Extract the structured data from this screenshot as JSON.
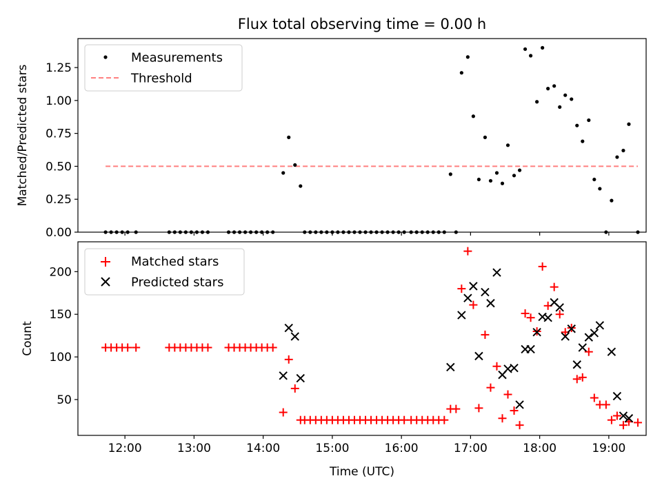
{
  "chart_data": {
    "title": "Flux total observing time = 0.00 h",
    "xlabel": "Time (UTC)",
    "x_ticks": [
      {
        "value": 12,
        "label": "12:00"
      },
      {
        "value": 13,
        "label": "13:00"
      },
      {
        "value": 14,
        "label": "14:00"
      },
      {
        "value": 15,
        "label": "15:00"
      },
      {
        "value": 16,
        "label": "16:00"
      },
      {
        "value": 17,
        "label": "17:00"
      },
      {
        "value": 18,
        "label": "18:00"
      },
      {
        "value": 19,
        "label": "19:00"
      }
    ],
    "xlim": [
      11.32,
      19.54
    ],
    "colors": {
      "measurements": "#000000",
      "threshold": "#ff7f7f",
      "matched": "#ff0000",
      "predicted": "#000000"
    },
    "panels": [
      {
        "type": "scatter",
        "ylabel": "Matched/Predicted stars",
        "ylim": [
          0,
          1.47
        ],
        "y_ticks": [
          "0.00",
          "0.25",
          "0.50",
          "0.75",
          "1.00",
          "1.25"
        ],
        "legend": {
          "position": "upper-left",
          "entries": [
            {
              "label": "Measurements",
              "marker": "dot"
            },
            {
              "label": "Threshold",
              "marker": "dashed-line"
            }
          ]
        },
        "threshold": {
          "x": [
            11.72,
            19.42
          ],
          "y": 0.5
        },
        "series": [
          {
            "name": "Measurements",
            "marker": "dot",
            "points": [
              [
                11.72,
                0
              ],
              [
                11.8,
                0
              ],
              [
                11.88,
                0
              ],
              [
                11.96,
                0
              ],
              [
                12.04,
                0
              ],
              [
                12.16,
                0
              ],
              [
                12.64,
                0
              ],
              [
                12.72,
                0
              ],
              [
                12.8,
                0
              ],
              [
                12.88,
                0
              ],
              [
                12.96,
                0
              ],
              [
                13.04,
                0
              ],
              [
                13.12,
                0
              ],
              [
                13.2,
                0
              ],
              [
                13.5,
                0
              ],
              [
                13.58,
                0
              ],
              [
                13.66,
                0
              ],
              [
                13.74,
                0
              ],
              [
                13.82,
                0
              ],
              [
                13.9,
                0
              ],
              [
                13.98,
                0
              ],
              [
                14.06,
                0
              ],
              [
                14.14,
                0
              ],
              [
                14.29,
                0.45
              ],
              [
                14.37,
                0.72
              ],
              [
                14.46,
                0.51
              ],
              [
                14.54,
                0.35
              ],
              [
                14.6,
                0
              ],
              [
                14.68,
                0
              ],
              [
                14.76,
                0
              ],
              [
                14.84,
                0
              ],
              [
                14.92,
                0
              ],
              [
                15.0,
                0
              ],
              [
                15.08,
                0
              ],
              [
                15.16,
                0
              ],
              [
                15.24,
                0
              ],
              [
                15.32,
                0
              ],
              [
                15.4,
                0
              ],
              [
                15.48,
                0
              ],
              [
                15.56,
                0
              ],
              [
                15.64,
                0
              ],
              [
                15.72,
                0
              ],
              [
                15.8,
                0
              ],
              [
                15.88,
                0
              ],
              [
                15.96,
                0
              ],
              [
                16.04,
                0
              ],
              [
                16.14,
                0
              ],
              [
                16.22,
                0
              ],
              [
                16.3,
                0
              ],
              [
                16.38,
                0
              ],
              [
                16.46,
                0
              ],
              [
                16.54,
                0
              ],
              [
                16.62,
                0
              ],
              [
                16.71,
                0.44
              ],
              [
                16.79,
                0
              ],
              [
                16.87,
                1.21
              ],
              [
                16.96,
                1.33
              ],
              [
                17.04,
                0.88
              ],
              [
                17.12,
                0.4
              ],
              [
                17.21,
                0.72
              ],
              [
                17.29,
                0.39
              ],
              [
                17.38,
                0.45
              ],
              [
                17.46,
                0.37
              ],
              [
                17.54,
                0.66
              ],
              [
                17.63,
                0.43
              ],
              [
                17.71,
                0.47
              ],
              [
                17.79,
                1.39
              ],
              [
                17.87,
                1.34
              ],
              [
                17.96,
                0.99
              ],
              [
                18.04,
                1.4
              ],
              [
                18.12,
                1.09
              ],
              [
                18.21,
                1.11
              ],
              [
                18.29,
                0.95
              ],
              [
                18.37,
                1.04
              ],
              [
                18.46,
                1.01
              ],
              [
                18.54,
                0.81
              ],
              [
                18.62,
                0.69
              ],
              [
                18.71,
                0.85
              ],
              [
                18.79,
                0.4
              ],
              [
                18.87,
                0.33
              ],
              [
                18.96,
                0
              ],
              [
                19.04,
                0.24
              ],
              [
                19.12,
                0.57
              ],
              [
                19.21,
                0.62
              ],
              [
                19.29,
                0.82
              ],
              [
                19.42,
                0
              ]
            ]
          }
        ]
      },
      {
        "type": "scatter",
        "ylabel": "Count",
        "ylim": [
          8,
          235
        ],
        "y_ticks": [
          "50",
          "100",
          "150",
          "200"
        ],
        "legend": {
          "position": "upper-left",
          "entries": [
            {
              "label": "Matched stars",
              "marker": "plus"
            },
            {
              "label": "Predicted stars",
              "marker": "x"
            }
          ]
        },
        "series": [
          {
            "name": "Matched stars",
            "marker": "plus",
            "points": [
              [
                11.72,
                111
              ],
              [
                11.8,
                111
              ],
              [
                11.88,
                111
              ],
              [
                11.96,
                111
              ],
              [
                12.04,
                111
              ],
              [
                12.16,
                111
              ],
              [
                12.64,
                111
              ],
              [
                12.72,
                111
              ],
              [
                12.8,
                111
              ],
              [
                12.88,
                111
              ],
              [
                12.96,
                111
              ],
              [
                13.04,
                111
              ],
              [
                13.12,
                111
              ],
              [
                13.2,
                111
              ],
              [
                13.5,
                111
              ],
              [
                13.58,
                111
              ],
              [
                13.66,
                111
              ],
              [
                13.74,
                111
              ],
              [
                13.82,
                111
              ],
              [
                13.9,
                111
              ],
              [
                13.98,
                111
              ],
              [
                14.06,
                111
              ],
              [
                14.14,
                111
              ],
              [
                14.29,
                35
              ],
              [
                14.37,
                97
              ],
              [
                14.46,
                63
              ],
              [
                14.54,
                26
              ],
              [
                14.6,
                26
              ],
              [
                14.68,
                26
              ],
              [
                14.76,
                26
              ],
              [
                14.84,
                26
              ],
              [
                14.92,
                26
              ],
              [
                15.0,
                26
              ],
              [
                15.08,
                26
              ],
              [
                15.16,
                26
              ],
              [
                15.24,
                26
              ],
              [
                15.32,
                26
              ],
              [
                15.4,
                26
              ],
              [
                15.48,
                26
              ],
              [
                15.56,
                26
              ],
              [
                15.64,
                26
              ],
              [
                15.72,
                26
              ],
              [
                15.8,
                26
              ],
              [
                15.88,
                26
              ],
              [
                15.96,
                26
              ],
              [
                16.04,
                26
              ],
              [
                16.14,
                26
              ],
              [
                16.22,
                26
              ],
              [
                16.3,
                26
              ],
              [
                16.38,
                26
              ],
              [
                16.46,
                26
              ],
              [
                16.54,
                26
              ],
              [
                16.62,
                26
              ],
              [
                16.71,
                39
              ],
              [
                16.79,
                39
              ],
              [
                16.87,
                180
              ],
              [
                16.96,
                224
              ],
              [
                17.04,
                161
              ],
              [
                17.12,
                40
              ],
              [
                17.21,
                126
              ],
              [
                17.29,
                64
              ],
              [
                17.38,
                89
              ],
              [
                17.46,
                28
              ],
              [
                17.54,
                56
              ],
              [
                17.63,
                37
              ],
              [
                17.71,
                20
              ],
              [
                17.79,
                151
              ],
              [
                17.87,
                146
              ],
              [
                17.96,
                130
              ],
              [
                18.04,
                206
              ],
              [
                18.12,
                160
              ],
              [
                18.21,
                182
              ],
              [
                18.29,
                150
              ],
              [
                18.37,
                129
              ],
              [
                18.46,
                134
              ],
              [
                18.54,
                74
              ],
              [
                18.62,
                76
              ],
              [
                18.71,
                106
              ],
              [
                18.79,
                52
              ],
              [
                18.87,
                44
              ],
              [
                18.96,
                44
              ],
              [
                19.04,
                26
              ],
              [
                19.12,
                31
              ],
              [
                19.21,
                20
              ],
              [
                19.29,
                24
              ],
              [
                19.42,
                23
              ]
            ]
          },
          {
            "name": "Predicted stars",
            "marker": "x",
            "points": [
              [
                14.29,
                78
              ],
              [
                14.37,
                134
              ],
              [
                14.46,
                124
              ],
              [
                14.54,
                75
              ],
              [
                16.71,
                88
              ],
              [
                16.87,
                149
              ],
              [
                16.96,
                169
              ],
              [
                17.04,
                183
              ],
              [
                17.12,
                101
              ],
              [
                17.21,
                176
              ],
              [
                17.29,
                163
              ],
              [
                17.38,
                199
              ],
              [
                17.46,
                79
              ],
              [
                17.54,
                86
              ],
              [
                17.63,
                87
              ],
              [
                17.71,
                44
              ],
              [
                17.79,
                109
              ],
              [
                17.87,
                109
              ],
              [
                17.96,
                129
              ],
              [
                18.04,
                147
              ],
              [
                18.12,
                146
              ],
              [
                18.21,
                164
              ],
              [
                18.29,
                158
              ],
              [
                18.37,
                124
              ],
              [
                18.46,
                133
              ],
              [
                18.54,
                91
              ],
              [
                18.62,
                111
              ],
              [
                18.71,
                123
              ],
              [
                18.79,
                128
              ],
              [
                18.87,
                137
              ],
              [
                19.04,
                106
              ],
              [
                19.12,
                54
              ],
              [
                19.21,
                31
              ],
              [
                19.29,
                28
              ]
            ]
          }
        ]
      }
    ]
  }
}
